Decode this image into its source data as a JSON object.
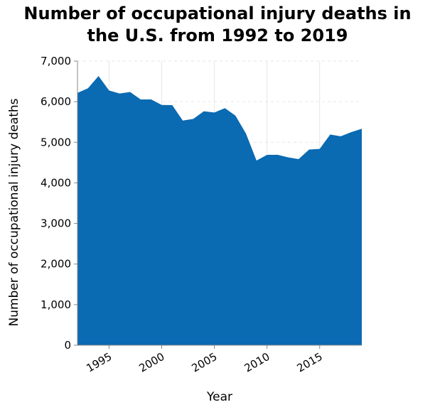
{
  "chart_data": {
    "type": "area",
    "title_lines": [
      "Number of occupational injury deaths in",
      "the U.S. from 1992 to 2019"
    ],
    "xlabel": "Year",
    "ylabel": "Number of occupational injury deaths",
    "xlim": [
      1992,
      2019
    ],
    "ylim": [
      0,
      7000
    ],
    "x_ticks": [
      1995,
      2000,
      2005,
      2010,
      2015
    ],
    "x_tick_labels": [
      "1995",
      "2000",
      "2005",
      "2010",
      "2015"
    ],
    "y_ticks": [
      0,
      1000,
      2000,
      3000,
      4000,
      5000,
      6000,
      7000
    ],
    "y_tick_labels": [
      "0",
      "1,000",
      "2,000",
      "3,000",
      "4,000",
      "5,000",
      "6,000",
      "7,000"
    ],
    "grid": true,
    "legend": "none",
    "fill_color": "#0a6ab2",
    "x": [
      1992,
      1993,
      1994,
      1995,
      1996,
      1997,
      1998,
      1999,
      2000,
      2001,
      2002,
      2003,
      2004,
      2005,
      2006,
      2007,
      2008,
      2009,
      2010,
      2011,
      2012,
      2013,
      2014,
      2015,
      2016,
      2017,
      2018,
      2019
    ],
    "values": [
      6217,
      6331,
      6632,
      6275,
      6202,
      6238,
      6055,
      6054,
      5920,
      5915,
      5534,
      5575,
      5764,
      5734,
      5840,
      5657,
      5214,
      4551,
      4690,
      4693,
      4628,
      4585,
      4821,
      4836,
      5190,
      5147,
      5250,
      5333
    ]
  }
}
